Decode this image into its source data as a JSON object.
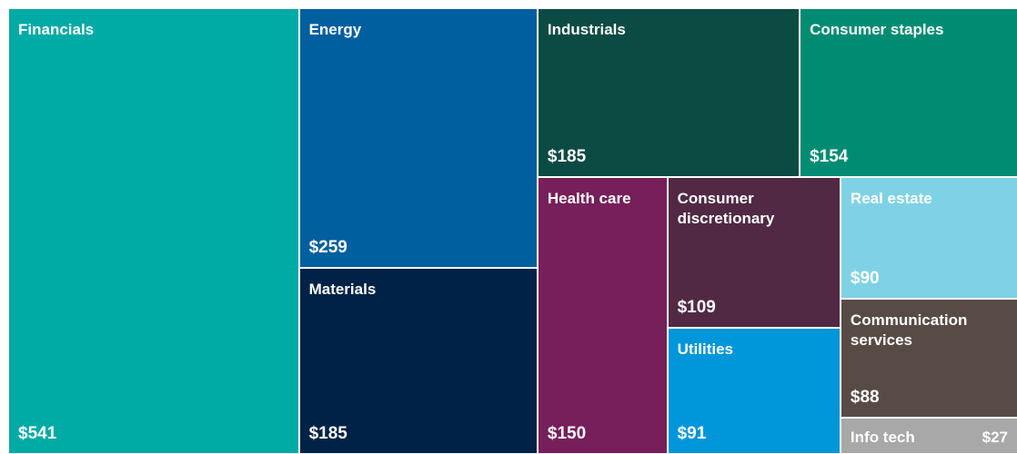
{
  "chart_data": {
    "type": "treemap",
    "categories": [
      "Financials",
      "Energy",
      "Materials",
      "Industrials",
      "Consumer staples",
      "Health care",
      "Consumer discretionary",
      "Utilities",
      "Real estate",
      "Communication services",
      "Info tech"
    ],
    "values": [
      541,
      259,
      185,
      185,
      154,
      150,
      109,
      91,
      90,
      88,
      27
    ],
    "value_labels": [
      "$541",
      "$259",
      "$185",
      "$185",
      "$154",
      "$150",
      "$109",
      "$91",
      "$90",
      "$88",
      "$27"
    ],
    "colors": [
      "#00aaa5",
      "#005f9e",
      "#002246",
      "#0c4b43",
      "#008c73",
      "#761f5a",
      "#512944",
      "#0096da",
      "#7fd2e6",
      "#584b46",
      "#a8a8a8"
    ]
  }
}
